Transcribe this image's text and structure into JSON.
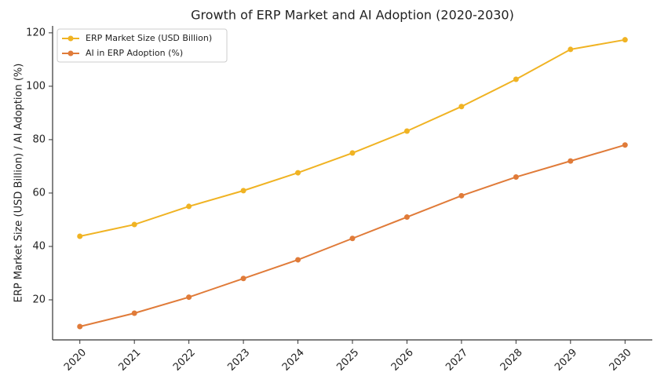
{
  "chart_data": {
    "type": "line",
    "title": "Growth of ERP Market and AI Adoption (2020-2030)",
    "y_label": "ERP Market Size (USD Billion) / AI Adoption (%)",
    "x": [
      2020,
      2021,
      2022,
      2023,
      2024,
      2025,
      2026,
      2027,
      2028,
      2029,
      2030
    ],
    "series": [
      {
        "name": "ERP Market Size (USD Billion)",
        "color": "#f0b323",
        "values": [
          43.8,
          48.2,
          55,
          60.9,
          67.6,
          75,
          83.2,
          92.4,
          102.6,
          113.8,
          117.4
        ]
      },
      {
        "name": "AI in ERP Adoption (%)",
        "color": "#e07b39",
        "values": [
          10,
          15,
          21,
          28,
          35,
          43,
          51,
          59,
          66,
          72,
          78
        ]
      }
    ],
    "xlim": [
      2019.5,
      2030.5
    ],
    "xticks": [
      2020,
      2021,
      2022,
      2023,
      2024,
      2025,
      2026,
      2027,
      2028,
      2029,
      2030
    ],
    "ylim": [
      5,
      122.6
    ],
    "yticks": [
      20,
      40,
      60,
      80,
      100,
      120
    ],
    "grid": false,
    "legend": "upper-left"
  }
}
